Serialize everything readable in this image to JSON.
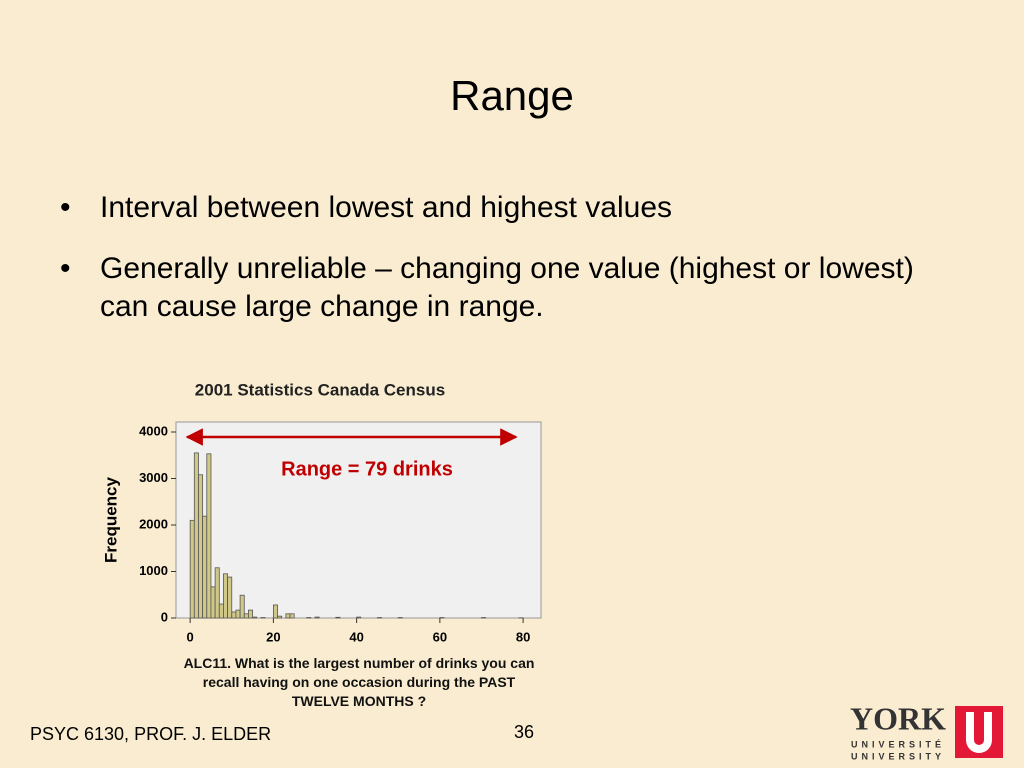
{
  "slide": {
    "title": "Range",
    "bullets": [
      "Interval between lowest and highest values",
      "Generally unreliable – changing one value (highest or lowest) can cause large change in range."
    ],
    "footer": "PSYC 6130, PROF. J. ELDER",
    "page_number": "36",
    "logo": {
      "name": "YORK",
      "line1": "UNIVERSITÉ",
      "line2": "UNIVERSITY"
    }
  },
  "chart_data": {
    "type": "histogram",
    "title": "2001 Statistics Canada Census",
    "ylabel": "Frequency",
    "xlabel": "ALC11.  What is the largest number of drinks you can recall having on one occasion during the PAST TWELVE MONTHS ?",
    "annotation": "Range = 79 drinks",
    "bins": [
      0,
      1,
      2,
      3,
      4,
      5,
      6,
      7,
      8,
      9,
      10,
      11,
      12,
      13,
      14,
      15,
      16,
      17,
      18,
      19,
      20,
      21,
      22,
      23,
      24,
      25,
      26,
      27,
      28,
      29,
      30,
      31,
      32,
      33,
      34,
      35,
      36,
      37,
      38,
      39,
      40,
      41,
      42,
      43,
      44,
      45,
      46,
      47,
      48,
      49,
      50,
      51,
      52,
      53,
      54,
      55,
      56,
      57,
      58,
      59,
      60,
      61,
      62,
      63,
      64,
      65,
      66,
      67,
      68,
      69,
      70,
      71,
      72,
      73,
      74,
      75,
      76,
      77,
      78,
      79,
      80
    ],
    "values": [
      2100,
      3550,
      3080,
      2190,
      3530,
      670,
      1080,
      300,
      950,
      880,
      130,
      170,
      490,
      90,
      170,
      20,
      0,
      10,
      0,
      0,
      280,
      40,
      0,
      90,
      90,
      0,
      0,
      0,
      10,
      0,
      20,
      0,
      0,
      0,
      0,
      15,
      0,
      0,
      0,
      0,
      20,
      0,
      0,
      0,
      0,
      10,
      0,
      0,
      0,
      0,
      10,
      0,
      0,
      0,
      0,
      0,
      0,
      0,
      0,
      0,
      10,
      0,
      0,
      0,
      0,
      0,
      0,
      0,
      0,
      0,
      10,
      0,
      0,
      0,
      0,
      0,
      0,
      0,
      0,
      5
    ],
    "color": "#cfc888",
    "xlim": [
      -3.4,
      84.3
    ],
    "ylim": [
      0,
      4215
    ],
    "xticks": [
      0,
      20,
      40,
      60,
      80
    ],
    "yticks": [
      0,
      1000,
      2000,
      3000,
      4000
    ]
  }
}
